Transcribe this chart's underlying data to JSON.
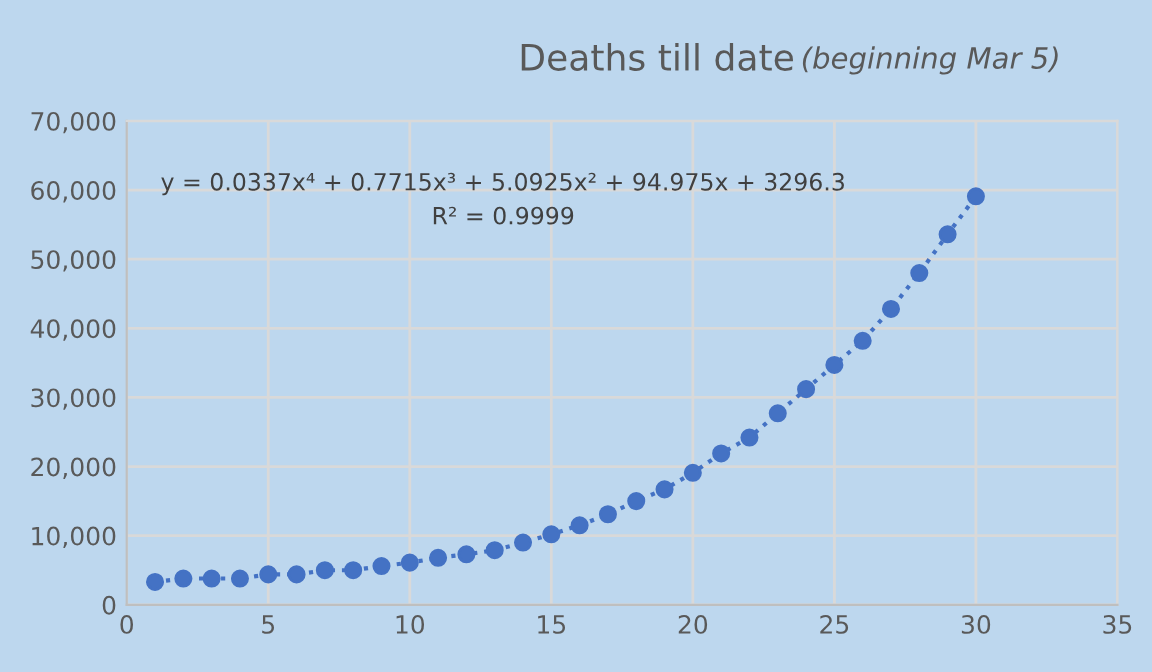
{
  "chart_data": {
    "type": "line",
    "title": "Deaths till date",
    "subtitle": "(beginning Mar 5)",
    "x": [
      1,
      2,
      3,
      4,
      5,
      6,
      7,
      8,
      9,
      10,
      11,
      12,
      13,
      14,
      15,
      16,
      17,
      18,
      19,
      20,
      21,
      22,
      23,
      24,
      25,
      26,
      27,
      28,
      29,
      30
    ],
    "series": [
      {
        "color": "#4472c4",
        "values": [
          3300,
          3800,
          3800,
          3800,
          4400,
          4400,
          5000,
          5000,
          5600,
          6100,
          6800,
          7300,
          7900,
          9000,
          10200,
          11500,
          13100,
          15000,
          16700,
          19100,
          21900,
          24200,
          27700,
          31200,
          34700,
          38200,
          42800,
          48000,
          53600,
          59100
        ]
      }
    ],
    "marker": "circle",
    "line_style": "dotted",
    "annotations": [
      "y = 0.0337x⁴ + 0.7715x³ + 5.0925x² + 94.975x + 3296.3",
      "R² = 0.9999"
    ],
    "xlim": [
      0,
      35
    ],
    "xticks": [
      0,
      5,
      10,
      15,
      20,
      25,
      30,
      35
    ],
    "ylim": [
      0,
      70000
    ],
    "yticks": [
      0,
      {
        "value": 10000,
        "label": "10,000"
      },
      {
        "value": 20000,
        "label": "20,000"
      },
      {
        "value": 30000,
        "label": "30,000"
      },
      {
        "value": 40000,
        "label": "40,000"
      },
      {
        "value": 50000,
        "label": "50,000"
      },
      {
        "value": 60000,
        "label": "60,000"
      },
      {
        "value": 70000,
        "label": "70,000"
      }
    ],
    "grid": true
  }
}
